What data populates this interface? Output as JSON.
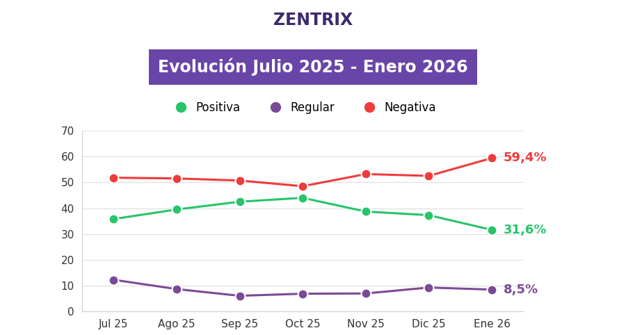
{
  "logo": "ZENTRIX",
  "chart_data": {
    "type": "line",
    "title": "Evolución Julio 2025 - Enero 2026",
    "categories": [
      "Jul 25",
      "Ago 25",
      "Sep 25",
      "Oct 25",
      "Nov 25",
      "Dic 25",
      "Ene 26"
    ],
    "series": [
      {
        "name": "Positiva",
        "color": "#27c46a",
        "marker": "o",
        "values": [
          35.8,
          39.5,
          42.5,
          44.0,
          38.7,
          37.3,
          31.6
        ],
        "value_labels": [
          null,
          null,
          null,
          null,
          null,
          null,
          "31,6%"
        ]
      },
      {
        "name": "Regular",
        "color": "#7a4a96",
        "marker": "o",
        "values": [
          12.3,
          8.7,
          6.1,
          6.9,
          7.0,
          9.3,
          8.5
        ],
        "value_labels": [
          null,
          null,
          null,
          null,
          null,
          null,
          "8,5%"
        ]
      },
      {
        "name": "Negativa",
        "color": "#ef3b3b",
        "marker": "o",
        "values": [
          51.8,
          51.5,
          50.7,
          48.5,
          53.2,
          52.5,
          59.4
        ],
        "value_labels": [
          null,
          null,
          null,
          null,
          null,
          null,
          "59,4%"
        ]
      }
    ],
    "ylim": [
      0,
      70
    ],
    "yticks": [
      0,
      10,
      20,
      30,
      40,
      50,
      60,
      70
    ],
    "grid": true,
    "legend": "upper center",
    "data_labels": true
  }
}
